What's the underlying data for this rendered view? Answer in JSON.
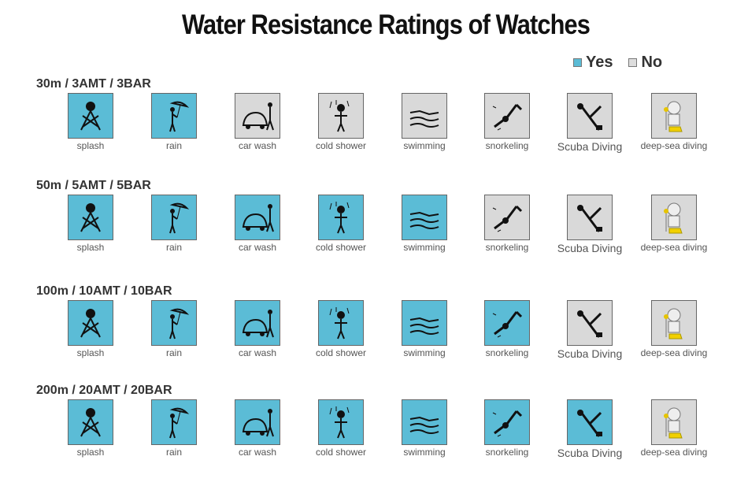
{
  "title": "Water Resistance Ratings of Watches",
  "legend": {
    "yes": "Yes",
    "no": "No"
  },
  "colors": {
    "yes": "#5bbcd6",
    "no": "#d9d9d9"
  },
  "activities": [
    "splash",
    "rain",
    "car wash",
    "cold shower",
    "swimming",
    "snorkeling",
    "Scuba Diving",
    "deep-sea diving"
  ],
  "ratings": [
    {
      "label": "30m / 3AMT / 3BAR",
      "allowed": [
        true,
        true,
        false,
        false,
        false,
        false,
        false,
        false
      ]
    },
    {
      "label": "50m / 5AMT / 5BAR",
      "allowed": [
        true,
        true,
        true,
        true,
        true,
        false,
        false,
        false
      ]
    },
    {
      "label": "100m / 10AMT / 10BAR",
      "allowed": [
        true,
        true,
        true,
        true,
        true,
        true,
        false,
        false
      ]
    },
    {
      "label": "200m / 20AMT / 20BAR",
      "allowed": [
        true,
        true,
        true,
        true,
        true,
        true,
        true,
        false
      ]
    }
  ]
}
